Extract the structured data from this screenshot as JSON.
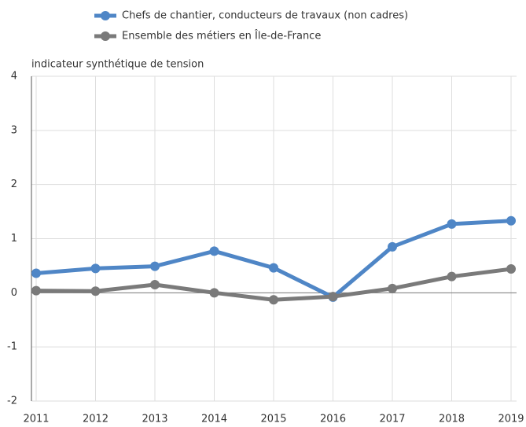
{
  "chart_data": {
    "type": "line",
    "y_label": "indicateur synthétique de tension",
    "categories": [
      "2011",
      "2012",
      "2013",
      "2014",
      "2015",
      "2016",
      "2017",
      "2018",
      "2019"
    ],
    "series": [
      {
        "name": "Chefs de chantier, conducteurs de travaux (non cadres)",
        "color": "#4f86c6",
        "values": [
          0.36,
          0.45,
          0.49,
          0.77,
          0.46,
          -0.08,
          0.85,
          1.27,
          1.33
        ]
      },
      {
        "name": "Ensemble des métiers en Île-de-France",
        "color": "#7a7a7a",
        "values": [
          0.04,
          0.03,
          0.15,
          0.0,
          -0.13,
          -0.07,
          0.08,
          0.3,
          0.44
        ]
      }
    ],
    "ylim": [
      -2,
      4
    ],
    "yticks": [
      -2,
      -1,
      0,
      1,
      2,
      3,
      4
    ],
    "grid": true
  }
}
